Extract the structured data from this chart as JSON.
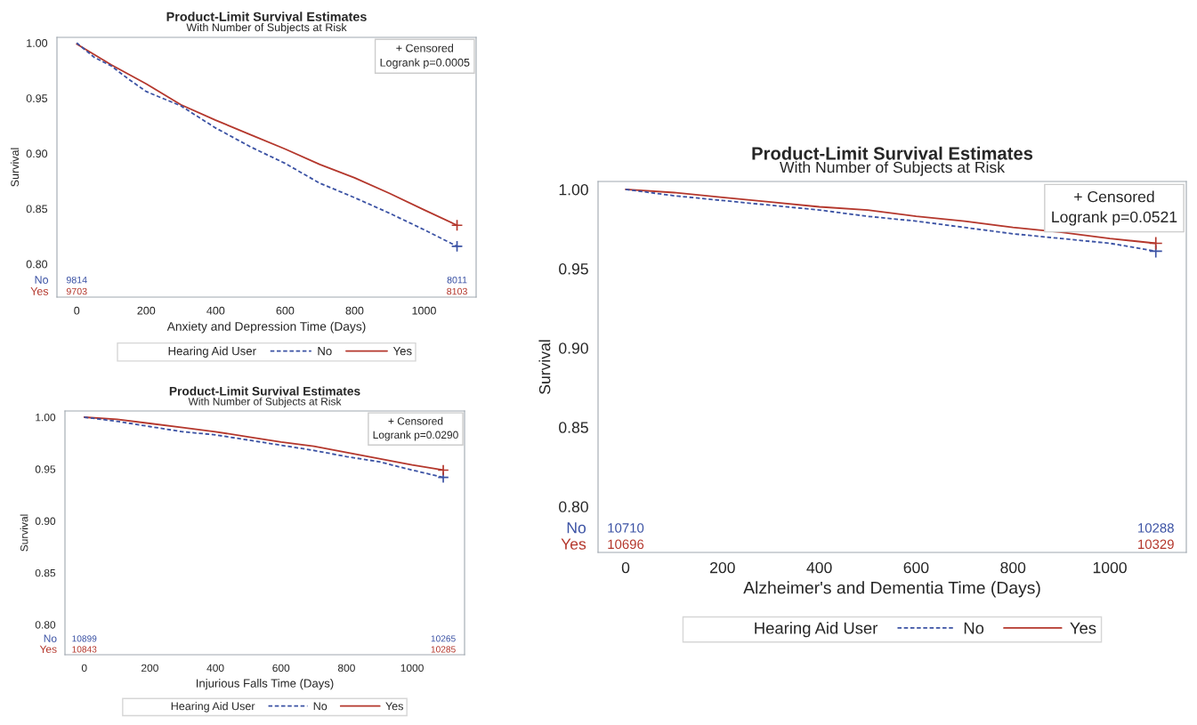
{
  "chart_data": [
    {
      "type": "line",
      "title": "Product-Limit Survival Estimates",
      "subtitle": "With Number of Subjects at Risk",
      "xlabel": "Anxiety and Depression Time (Days)",
      "ylabel": "Survival",
      "legend_title": "Hearing Aid User",
      "legend": "bottom",
      "grid": false,
      "xlim": [
        -57,
        1150
      ],
      "xticks": [
        0,
        200,
        400,
        600,
        800,
        1000
      ],
      "ylim": [
        0.77,
        1.005
      ],
      "yticks": [
        {
          "value": 0.8,
          "label": "0.80"
        },
        {
          "value": 0.85,
          "label": "0.85"
        },
        {
          "value": 0.9,
          "label": "0.90"
        },
        {
          "value": 0.95,
          "label": "0.95"
        },
        {
          "value": 1.0,
          "label": "1.00"
        }
      ],
      "series": [
        {
          "name": "No",
          "color": "#3b52a4",
          "line_style": "dashed",
          "x": [
            0,
            50,
            100,
            150,
            200,
            300,
            400,
            500,
            600,
            700,
            800,
            900,
            1000,
            1095
          ],
          "values": [
            1.0,
            0.987,
            0.979,
            0.967,
            0.956,
            0.943,
            0.923,
            0.906,
            0.891,
            0.873,
            0.86,
            0.846,
            0.831,
            0.816
          ]
        },
        {
          "name": "Yes",
          "color": "#b4372c",
          "line_style": "solid",
          "x": [
            0,
            100,
            200,
            300,
            400,
            500,
            600,
            700,
            800,
            900,
            1000,
            1095
          ],
          "values": [
            0.999,
            0.98,
            0.963,
            0.944,
            0.93,
            0.917,
            0.904,
            0.89,
            0.878,
            0.864,
            0.849,
            0.835
          ]
        },
        {
          "type": "scatter",
          "marker": "cross",
          "color": "#3b52a4",
          "x": [
            1095
          ],
          "values": [
            0.816
          ]
        },
        {
          "type": "scatter",
          "marker": "cross",
          "color": "#b4372c",
          "x": [
            1095
          ],
          "values": [
            0.835
          ]
        }
      ],
      "annotations": [
        "+ Censored",
        "Logrank p=0.0005",
        "9814",
        "8011",
        "9703",
        "8103"
      ]
    },
    {
      "type": "line",
      "title": "Product-Limit Survival Estimates",
      "subtitle": "With Number of Subjects at Risk",
      "xlabel": "Injurious Falls Time (Days)",
      "ylabel": "Survival",
      "legend_title": "Hearing Aid User",
      "legend": "bottom",
      "grid": false,
      "xlim": [
        -59,
        1160
      ],
      "xticks": [
        0,
        200,
        400,
        600,
        800,
        1000
      ],
      "ylim": [
        0.771,
        1.006
      ],
      "yticks": [
        {
          "value": 0.8,
          "label": "0.80"
        },
        {
          "value": 0.85,
          "label": "0.85"
        },
        {
          "value": 0.9,
          "label": "0.90"
        },
        {
          "value": 0.95,
          "label": "0.95"
        },
        {
          "value": 1.0,
          "label": "1.00"
        }
      ],
      "series": [
        {
          "name": "No",
          "color": "#3b52a4",
          "line_style": "dashed",
          "x": [
            0,
            100,
            200,
            300,
            400,
            500,
            600,
            700,
            800,
            900,
            1000,
            1095
          ],
          "values": [
            1.0,
            0.996,
            0.991,
            0.986,
            0.983,
            0.978,
            0.973,
            0.968,
            0.962,
            0.957,
            0.949,
            0.942
          ]
        },
        {
          "name": "Yes",
          "color": "#b4372c",
          "line_style": "solid",
          "x": [
            0,
            100,
            200,
            300,
            400,
            500,
            600,
            700,
            800,
            900,
            1000,
            1095
          ],
          "values": [
            1.0,
            0.998,
            0.994,
            0.99,
            0.986,
            0.981,
            0.976,
            0.972,
            0.966,
            0.96,
            0.954,
            0.949
          ]
        },
        {
          "type": "scatter",
          "marker": "cross",
          "color": "#3b52a4",
          "x": [
            1095
          ],
          "values": [
            0.942
          ]
        },
        {
          "type": "scatter",
          "marker": "cross",
          "color": "#b4372c",
          "x": [
            1095
          ],
          "values": [
            0.949
          ]
        }
      ],
      "annotations": [
        "+ Censored",
        "Logrank p=0.0290",
        "10899",
        "10265",
        "10843",
        "10285"
      ]
    },
    {
      "type": "line",
      "title": "Product-Limit Survival Estimates",
      "subtitle": "With Number of Subjects at Risk",
      "xlabel": "Alzheimer's and Dementia Time (Days)",
      "ylabel": "Survival",
      "legend_title": "Hearing Aid User",
      "legend": "bottom",
      "grid": false,
      "xlim": [
        -57,
        1158
      ],
      "xticks": [
        0,
        200,
        400,
        600,
        800,
        1000
      ],
      "ylim": [
        0.771,
        1.005
      ],
      "yticks": [
        {
          "value": 0.8,
          "label": "0.80"
        },
        {
          "value": 0.85,
          "label": "0.85"
        },
        {
          "value": 0.9,
          "label": "0.90"
        },
        {
          "value": 0.95,
          "label": "0.95"
        },
        {
          "value": 1.0,
          "label": "1.00"
        }
      ],
      "series": [
        {
          "name": "No",
          "color": "#3b52a4",
          "line_style": "dashed",
          "x": [
            0,
            100,
            200,
            300,
            400,
            500,
            600,
            700,
            800,
            900,
            1000,
            1095
          ],
          "values": [
            1.0,
            0.996,
            0.993,
            0.99,
            0.987,
            0.983,
            0.98,
            0.976,
            0.972,
            0.969,
            0.966,
            0.961
          ]
        },
        {
          "name": "Yes",
          "color": "#b4372c",
          "line_style": "solid",
          "x": [
            0,
            100,
            200,
            300,
            400,
            500,
            600,
            700,
            800,
            900,
            1000,
            1095
          ],
          "values": [
            1.0,
            0.998,
            0.995,
            0.992,
            0.989,
            0.987,
            0.983,
            0.98,
            0.976,
            0.973,
            0.969,
            0.966
          ]
        },
        {
          "type": "scatter",
          "marker": "cross",
          "color": "#3b52a4",
          "x": [
            1095
          ],
          "values": [
            0.961
          ]
        },
        {
          "type": "scatter",
          "marker": "cross",
          "color": "#b4372c",
          "x": [
            1095
          ],
          "values": [
            0.966
          ]
        }
      ],
      "annotations": [
        "+ Censored",
        "Logrank p=0.0521",
        "10710",
        "10288",
        "10696",
        "10329"
      ]
    }
  ]
}
